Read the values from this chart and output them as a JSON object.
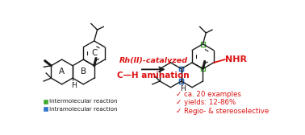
{
  "arrow_text_line1": "Rh(II)-catalyzed",
  "arrow_text_line2": "C—H amination",
  "legend_green_label": "Intermolecular reaction",
  "legend_blue_label": "Intramolecular reaction",
  "bullet1": "ca. 20 examples",
  "bullet2": "yields: 12-86%",
  "bullet3": "Regio- & stereoselective",
  "red_color": "#DD1111",
  "green_color": "#44AA33",
  "blue_color": "#3377CC",
  "dark_color": "#1a1a1a",
  "bg_color": "#FFFFFF",
  "nhR_label": "NHR"
}
